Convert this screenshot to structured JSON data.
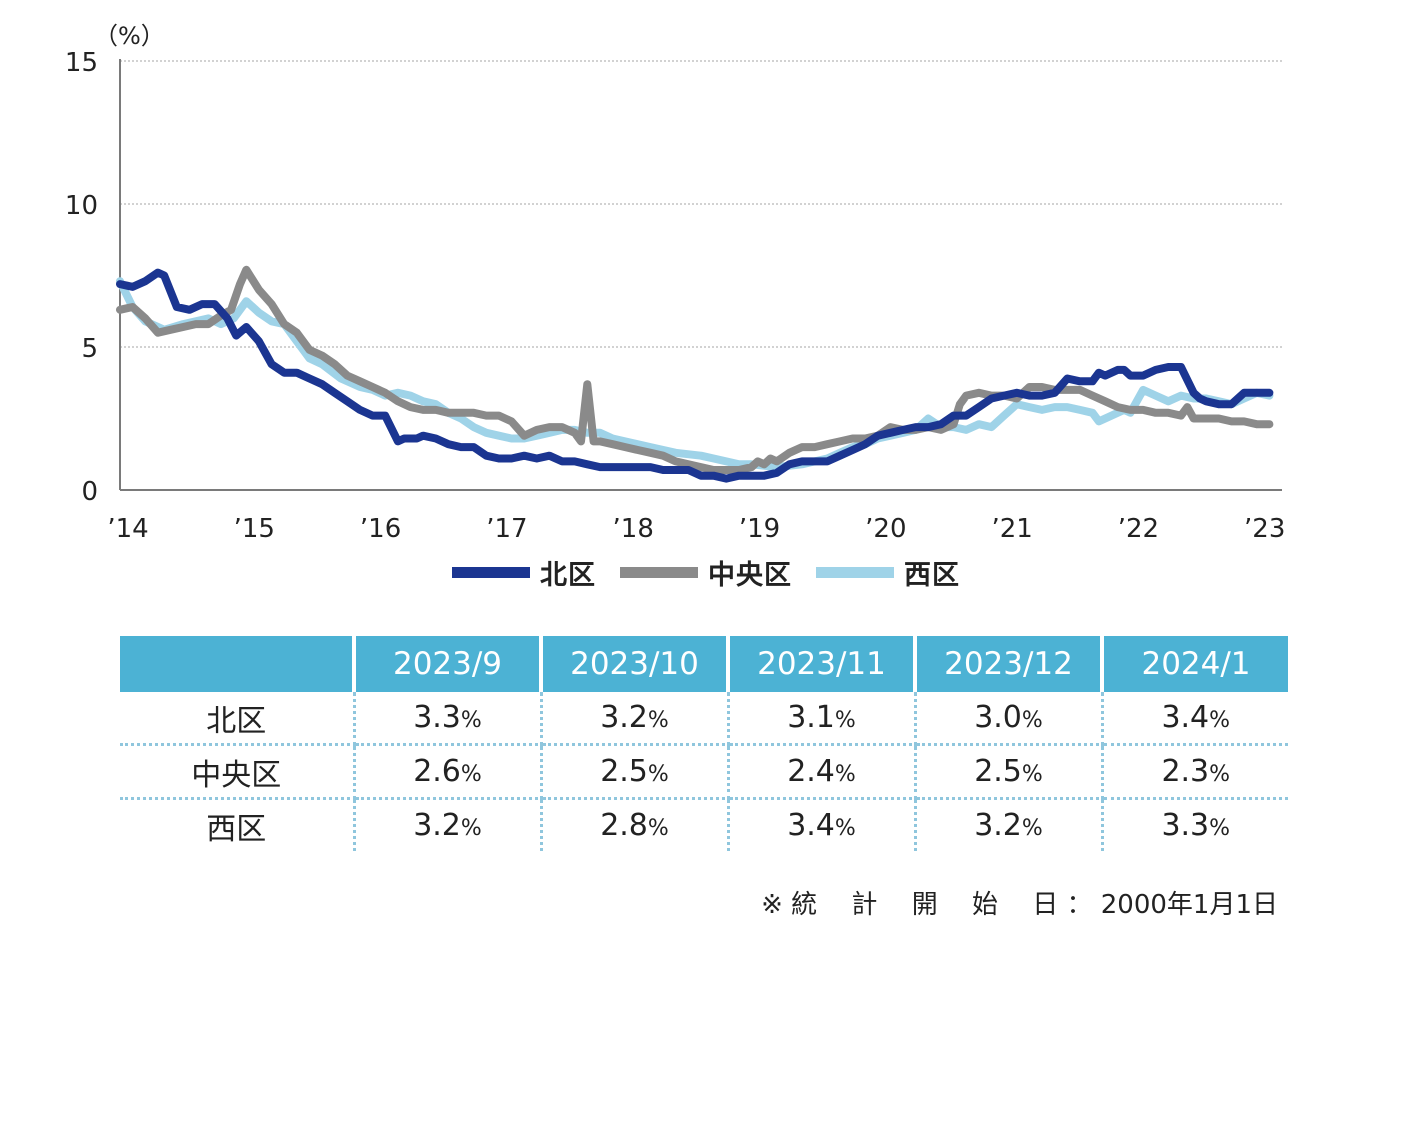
{
  "chart_data": {
    "type": "line",
    "unit_label": "（%）",
    "ylim": [
      0,
      15
    ],
    "yticks": [
      0,
      5,
      10,
      15
    ],
    "xlim": [
      2014,
      2023.2
    ],
    "xticks": [
      {
        "x": 2014,
        "label": "’14"
      },
      {
        "x": 2015,
        "label": "’15"
      },
      {
        "x": 2016,
        "label": "’16"
      },
      {
        "x": 2017,
        "label": "’17"
      },
      {
        "x": 2018,
        "label": "’18"
      },
      {
        "x": 2019,
        "label": "’19"
      },
      {
        "x": 2020,
        "label": "’20"
      },
      {
        "x": 2021,
        "label": "’21"
      },
      {
        "x": 2022,
        "label": "’22"
      },
      {
        "x": 2023,
        "label": "’23"
      }
    ],
    "grid": "horizontal-dotted",
    "legend_position": "bottom-center",
    "series": [
      {
        "name": "西区",
        "color": "#9fd3e8",
        "x": [
          2014.0,
          2014.1,
          2014.2,
          2014.35,
          2014.5,
          2014.6,
          2014.7,
          2014.8,
          2014.9,
          2015.0,
          2015.1,
          2015.2,
          2015.3,
          2015.4,
          2015.5,
          2015.6,
          2015.75,
          2015.9,
          2016.0,
          2016.1,
          2016.2,
          2016.3,
          2016.4,
          2016.5,
          2016.6,
          2016.7,
          2016.8,
          2016.9,
          2017.0,
          2017.1,
          2017.2,
          2017.3,
          2017.4,
          2017.5,
          2017.6,
          2017.7,
          2017.8,
          2017.9,
          2018.0,
          2018.2,
          2018.4,
          2018.6,
          2018.7,
          2018.8,
          2018.9,
          2019.0,
          2019.2,
          2019.4,
          2019.5,
          2019.6,
          2019.7,
          2019.8,
          2019.9,
          2020.0,
          2020.2,
          2020.3,
          2020.4,
          2020.5,
          2020.6,
          2020.7,
          2020.8,
          2020.9,
          2021.0,
          2021.1,
          2021.2,
          2021.3,
          2021.4,
          2021.5,
          2021.6,
          2021.7,
          2021.75,
          2021.85,
          2021.95,
          2022.0,
          2022.1,
          2022.2,
          2022.3,
          2022.4,
          2022.5,
          2022.6,
          2022.7,
          2022.8,
          2022.9,
          2023.0,
          2023.1
        ],
        "y": [
          7.3,
          6.4,
          5.9,
          5.6,
          5.8,
          5.9,
          6.0,
          5.8,
          6.0,
          6.6,
          6.2,
          5.9,
          5.8,
          5.2,
          4.6,
          4.4,
          3.9,
          3.6,
          3.5,
          3.3,
          3.4,
          3.3,
          3.1,
          3.0,
          2.7,
          2.5,
          2.2,
          2.0,
          1.9,
          1.8,
          1.8,
          1.9,
          2.0,
          2.1,
          2.1,
          2.0,
          2.0,
          1.8,
          1.7,
          1.5,
          1.3,
          1.2,
          1.1,
          1.0,
          0.9,
          0.9,
          0.8,
          0.9,
          1.0,
          1.1,
          1.3,
          1.5,
          1.6,
          1.8,
          2.0,
          2.1,
          2.5,
          2.2,
          2.2,
          2.1,
          2.3,
          2.2,
          2.6,
          3.0,
          2.9,
          2.8,
          2.9,
          2.9,
          2.8,
          2.7,
          2.4,
          2.6,
          2.8,
          2.7,
          3.5,
          3.3,
          3.1,
          3.3,
          3.2,
          3.2,
          3.1,
          3.0,
          3.2,
          3.4,
          3.3
        ]
      },
      {
        "name": "中央区",
        "color": "#8a8a8a",
        "x": [
          2014.0,
          2014.1,
          2014.2,
          2014.3,
          2014.4,
          2014.5,
          2014.6,
          2014.7,
          2014.8,
          2014.88,
          2014.95,
          2015.0,
          2015.1,
          2015.2,
          2015.3,
          2015.4,
          2015.5,
          2015.6,
          2015.7,
          2015.8,
          2015.9,
          2016.0,
          2016.1,
          2016.2,
          2016.3,
          2016.4,
          2016.5,
          2016.6,
          2016.7,
          2016.8,
          2016.9,
          2017.0,
          2017.1,
          2017.2,
          2017.3,
          2017.4,
          2017.5,
          2017.6,
          2017.65,
          2017.7,
          2017.75,
          2017.8,
          2017.9,
          2018.0,
          2018.1,
          2018.2,
          2018.3,
          2018.4,
          2018.5,
          2018.6,
          2018.7,
          2018.8,
          2018.9,
          2019.0,
          2019.05,
          2019.1,
          2019.15,
          2019.2,
          2019.3,
          2019.4,
          2019.5,
          2019.6,
          2019.7,
          2019.8,
          2019.9,
          2020.0,
          2020.1,
          2020.2,
          2020.3,
          2020.4,
          2020.5,
          2020.6,
          2020.65,
          2020.7,
          2020.8,
          2020.9,
          2021.0,
          2021.1,
          2021.2,
          2021.3,
          2021.4,
          2021.5,
          2021.6,
          2021.7,
          2021.8,
          2021.9,
          2022.0,
          2022.1,
          2022.2,
          2022.3,
          2022.4,
          2022.45,
          2022.5,
          2022.6,
          2022.7,
          2022.8,
          2022.9,
          2023.0,
          2023.1
        ],
        "y": [
          6.3,
          6.4,
          6.0,
          5.5,
          5.6,
          5.7,
          5.8,
          5.8,
          6.1,
          6.3,
          7.2,
          7.7,
          7.0,
          6.5,
          5.8,
          5.5,
          4.9,
          4.7,
          4.4,
          4.0,
          3.8,
          3.6,
          3.4,
          3.1,
          2.9,
          2.8,
          2.8,
          2.7,
          2.7,
          2.7,
          2.6,
          2.6,
          2.4,
          1.9,
          2.1,
          2.2,
          2.2,
          2.0,
          1.7,
          3.7,
          1.7,
          1.7,
          1.6,
          1.5,
          1.4,
          1.3,
          1.2,
          1.0,
          0.9,
          0.8,
          0.7,
          0.7,
          0.7,
          0.8,
          1.0,
          0.9,
          1.1,
          1.0,
          1.3,
          1.5,
          1.5,
          1.6,
          1.7,
          1.8,
          1.8,
          1.9,
          2.2,
          2.1,
          2.1,
          2.2,
          2.1,
          2.3,
          3.0,
          3.3,
          3.4,
          3.3,
          3.3,
          3.2,
          3.6,
          3.6,
          3.5,
          3.5,
          3.5,
          3.3,
          3.1,
          2.9,
          2.8,
          2.8,
          2.7,
          2.7,
          2.6,
          2.9,
          2.5,
          2.5,
          2.5,
          2.4,
          2.4,
          2.3,
          2.3
        ]
      },
      {
        "name": "北区",
        "color": "#1b3591",
        "x": [
          2014.0,
          2014.1,
          2014.2,
          2014.3,
          2014.35,
          2014.45,
          2014.55,
          2014.65,
          2014.75,
          2014.85,
          2014.92,
          2015.0,
          2015.1,
          2015.2,
          2015.3,
          2015.4,
          2015.5,
          2015.6,
          2015.7,
          2015.8,
          2015.9,
          2016.0,
          2016.1,
          2016.2,
          2016.25,
          2016.3,
          2016.35,
          2016.4,
          2016.5,
          2016.6,
          2016.7,
          2016.8,
          2016.9,
          2017.0,
          2017.1,
          2017.2,
          2017.3,
          2017.4,
          2017.5,
          2017.6,
          2017.7,
          2017.8,
          2017.9,
          2018.0,
          2018.1,
          2018.2,
          2018.3,
          2018.4,
          2018.5,
          2018.6,
          2018.7,
          2018.8,
          2018.9,
          2019.0,
          2019.1,
          2019.2,
          2019.3,
          2019.4,
          2019.5,
          2019.6,
          2019.7,
          2019.8,
          2019.9,
          2020.0,
          2020.1,
          2020.2,
          2020.3,
          2020.4,
          2020.5,
          2020.6,
          2020.7,
          2020.8,
          2020.9,
          2021.0,
          2021.1,
          2021.2,
          2021.3,
          2021.4,
          2021.5,
          2021.6,
          2021.7,
          2021.75,
          2021.8,
          2021.9,
          2021.95,
          2022.0,
          2022.1,
          2022.2,
          2022.3,
          2022.4,
          2022.5,
          2022.55,
          2022.6,
          2022.7,
          2022.8,
          2022.9,
          2023.0,
          2023.1
        ],
        "y": [
          7.2,
          7.1,
          7.3,
          7.6,
          7.5,
          6.4,
          6.3,
          6.5,
          6.5,
          6.0,
          5.4,
          5.7,
          5.2,
          4.4,
          4.1,
          4.1,
          3.9,
          3.7,
          3.4,
          3.1,
          2.8,
          2.6,
          2.6,
          1.7,
          1.8,
          1.8,
          1.8,
          1.9,
          1.8,
          1.6,
          1.5,
          1.5,
          1.2,
          1.1,
          1.1,
          1.2,
          1.1,
          1.2,
          1.0,
          1.0,
          0.9,
          0.8,
          0.8,
          0.8,
          0.8,
          0.8,
          0.7,
          0.7,
          0.7,
          0.5,
          0.5,
          0.4,
          0.5,
          0.5,
          0.5,
          0.6,
          0.9,
          1.0,
          1.0,
          1.0,
          1.2,
          1.4,
          1.6,
          1.9,
          2.0,
          2.1,
          2.2,
          2.2,
          2.3,
          2.6,
          2.6,
          2.9,
          3.2,
          3.3,
          3.4,
          3.3,
          3.3,
          3.4,
          3.9,
          3.8,
          3.8,
          4.1,
          4.0,
          4.2,
          4.2,
          4.0,
          4.0,
          4.2,
          4.3,
          4.3,
          3.4,
          3.2,
          3.1,
          3.0,
          3.0,
          3.4,
          3.4,
          3.4
        ]
      }
    ]
  },
  "legend": [
    {
      "name": "北区",
      "color": "#1b3591"
    },
    {
      "name": "中央区",
      "color": "#8a8a8a"
    },
    {
      "name": "西区",
      "color": "#9fd3e8"
    }
  ],
  "table": {
    "columns": [
      "",
      "2023/9",
      "2023/10",
      "2023/11",
      "2023/12",
      "2024/1"
    ],
    "pct_suffix": "%",
    "rows": [
      {
        "label": "北区",
        "values": [
          "3.3",
          "3.2",
          "3.1",
          "3.0",
          "3.4"
        ]
      },
      {
        "label": "中央区",
        "values": [
          "2.6",
          "2.5",
          "2.4",
          "2.5",
          "2.3"
        ]
      },
      {
        "label": "西区",
        "values": [
          "3.2",
          "2.8",
          "3.4",
          "3.2",
          "3.3"
        ]
      }
    ]
  },
  "note": "※ 統　 計　 開　 始　 日 ： 2000年1月1日"
}
